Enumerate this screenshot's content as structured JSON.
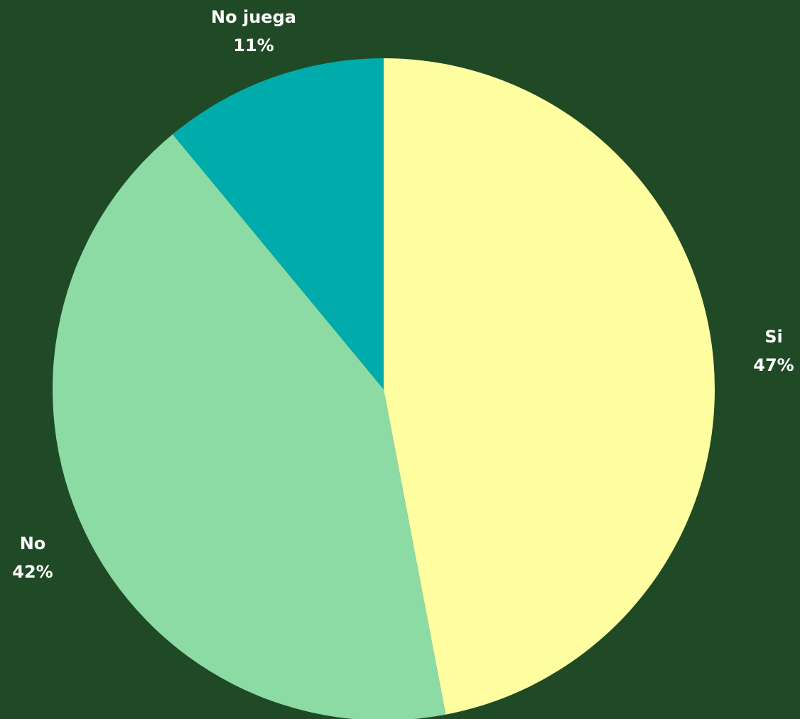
{
  "colors": {
    "background": "#204a26",
    "label": "#ffffff"
  },
  "chart_data": {
    "type": "pie",
    "title": "",
    "start": "12 o'clock",
    "direction": "clockwise",
    "slices": [
      {
        "label": "Si",
        "value": 47,
        "percent_label": "47%",
        "color": "#ffffa1"
      },
      {
        "label": "No",
        "value": 42,
        "percent_label": "42%",
        "color": "#8cdba5"
      },
      {
        "label": "No juega",
        "value": 11,
        "percent_label": "11%",
        "color": "#00abab"
      }
    ]
  }
}
